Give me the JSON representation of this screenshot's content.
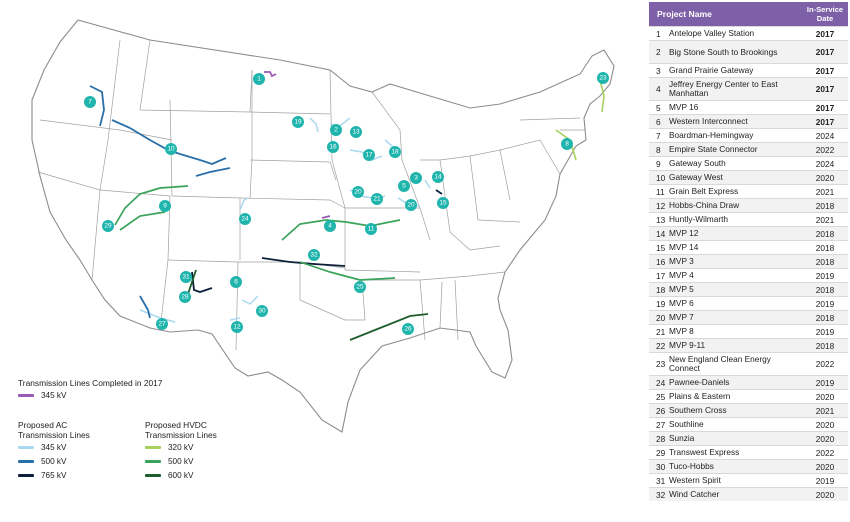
{
  "legend": {
    "completed_title": "Transmission Lines Completed in 2017",
    "completed": [
      {
        "label": "345 kV",
        "color": "#9b59b6"
      }
    ],
    "ac_title": "Proposed AC Transmission Lines",
    "ac": [
      {
        "label": "345 kV",
        "color": "#aad8f0"
      },
      {
        "label": "500 kV",
        "color": "#2a6fa8"
      },
      {
        "label": "765 kV",
        "color": "#0d1f3a"
      }
    ],
    "hvdc_title": "Proposed HVDC Transmission Lines",
    "hvdc": [
      {
        "label": "320 kV",
        "color": "#a6d15c"
      },
      {
        "label": "500 kV",
        "color": "#3aa35a"
      },
      {
        "label": "600 kV",
        "color": "#1e5e2c"
      }
    ]
  },
  "table": {
    "header_name": "Project Name",
    "header_date": "In-Service Date",
    "rows": [
      {
        "num": "1",
        "name": "Antelope Valley Station",
        "year": "2017",
        "bold": true
      },
      {
        "num": "2",
        "name": "Big Stone South to Brookings",
        "year": "2017",
        "bold": true
      },
      {
        "num": "3",
        "name": "Grand Prairie Gateway",
        "year": "2017",
        "bold": true
      },
      {
        "num": "4",
        "name": "Jeffrey Energy Center to East Manhattan",
        "year": "2017",
        "bold": true
      },
      {
        "num": "5",
        "name": "MVP 16",
        "year": "2017",
        "bold": true
      },
      {
        "num": "6",
        "name": "Western Interconnect",
        "year": "2017",
        "bold": true
      },
      {
        "num": "7",
        "name": "Boardman-Hemingway",
        "year": "2024",
        "bold": false
      },
      {
        "num": "8",
        "name": "Empire State Connector",
        "year": "2022",
        "bold": false
      },
      {
        "num": "9",
        "name": "Gateway South",
        "year": "2024",
        "bold": false
      },
      {
        "num": "10",
        "name": "Gateway West",
        "year": "2020",
        "bold": false
      },
      {
        "num": "11",
        "name": "Grain Belt Express",
        "year": "2021",
        "bold": false
      },
      {
        "num": "12",
        "name": "Hobbs-China Draw",
        "year": "2018",
        "bold": false
      },
      {
        "num": "13",
        "name": "Huntly-Wilmarth",
        "year": "2021",
        "bold": false
      },
      {
        "num": "14",
        "name": "MVP 12",
        "year": "2018",
        "bold": false
      },
      {
        "num": "15",
        "name": "MVP 14",
        "year": "2018",
        "bold": false
      },
      {
        "num": "16",
        "name": "MVP 3",
        "year": "2018",
        "bold": false
      },
      {
        "num": "17",
        "name": "MVP 4",
        "year": "2019",
        "bold": false
      },
      {
        "num": "18",
        "name": "MVP 5",
        "year": "2018",
        "bold": false
      },
      {
        "num": "19",
        "name": "MVP 6",
        "year": "2019",
        "bold": false
      },
      {
        "num": "20",
        "name": "MVP 7",
        "year": "2018",
        "bold": false
      },
      {
        "num": "21",
        "name": "MVP 8",
        "year": "2019",
        "bold": false
      },
      {
        "num": "22",
        "name": "MVP 9-11",
        "year": "2018",
        "bold": false
      },
      {
        "num": "23",
        "name": "New England Clean Energy Connect",
        "year": "2022",
        "bold": false
      },
      {
        "num": "24",
        "name": "Pawnee-Daniels",
        "year": "2019",
        "bold": false
      },
      {
        "num": "25",
        "name": "Plains & Eastern",
        "year": "2020",
        "bold": false
      },
      {
        "num": "26",
        "name": "Southern Cross",
        "year": "2021",
        "bold": false
      },
      {
        "num": "27",
        "name": "Southline",
        "year": "2020",
        "bold": false
      },
      {
        "num": "28",
        "name": "Sunzia",
        "year": "2020",
        "bold": false
      },
      {
        "num": "29",
        "name": "Transwest Express",
        "year": "2022",
        "bold": false
      },
      {
        "num": "30",
        "name": "Tuco-Hobbs",
        "year": "2020",
        "bold": false
      },
      {
        "num": "31",
        "name": "Western Spirit",
        "year": "2019",
        "bold": false
      },
      {
        "num": "32",
        "name": "Wind Catcher",
        "year": "2020",
        "bold": false
      }
    ]
  },
  "markers": [
    "1",
    "2",
    "3",
    "4",
    "5",
    "6",
    "7",
    "8",
    "9",
    "10",
    "11",
    "12",
    "13",
    "14",
    "15",
    "16",
    "17",
    "18",
    "19",
    "20",
    "21",
    "22",
    "23",
    "24",
    "25",
    "26",
    "27",
    "28",
    "29",
    "30",
    "31",
    "32"
  ],
  "colors": {
    "marker": "#1fb5ad",
    "header": "#7e60a8",
    "state_border": "#9a9a9a",
    "state_fill": "#ffffff"
  }
}
